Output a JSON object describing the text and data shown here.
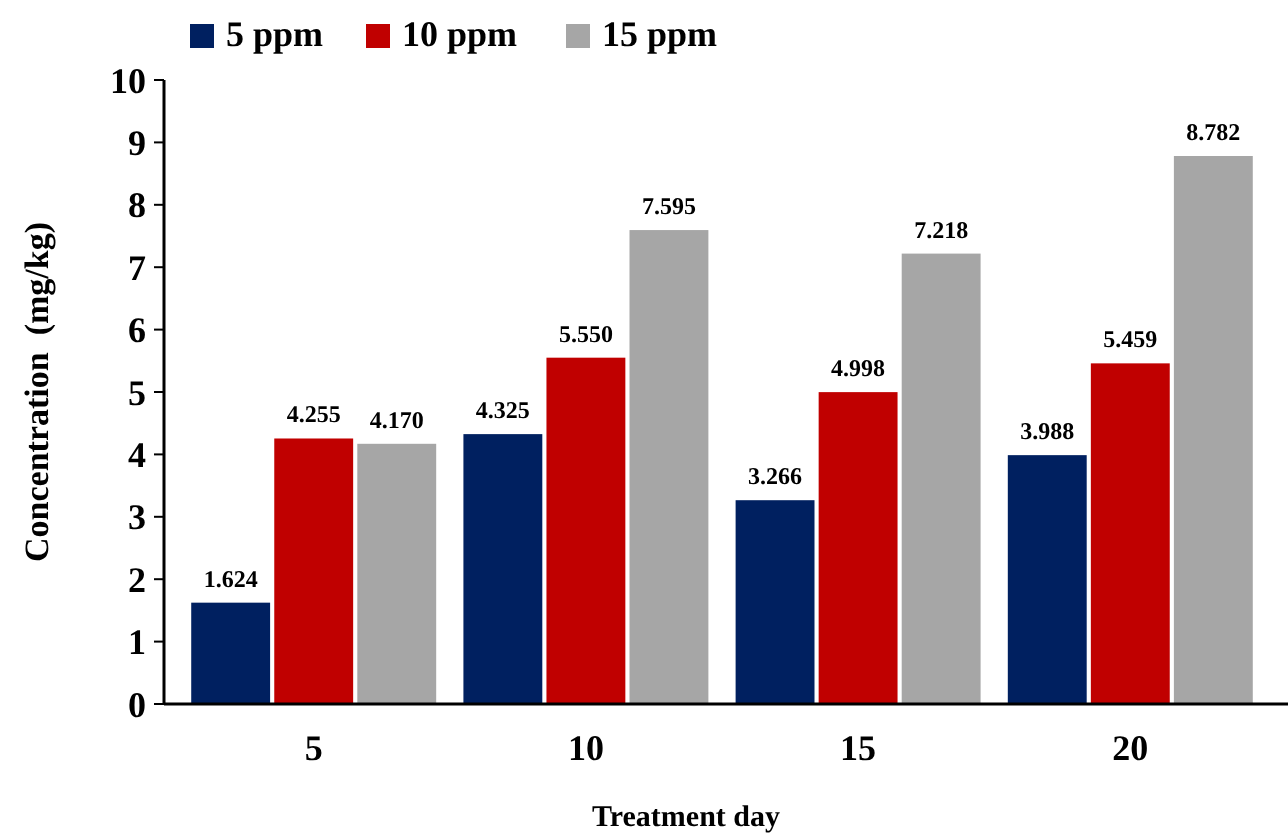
{
  "chart_data": {
    "type": "bar",
    "xlabel": "Treatment day",
    "ylabel": "Concentration  (mg/kg)",
    "categories": [
      "5",
      "10",
      "15",
      "20"
    ],
    "series": [
      {
        "name": "5 ppm",
        "color": "#002060",
        "values": [
          1.624,
          4.325,
          3.266,
          3.988
        ],
        "value_labels": [
          "1.624",
          "4.325",
          "3.266",
          "3.988"
        ]
      },
      {
        "name": "10 ppm",
        "color": "#c00000",
        "values": [
          4.255,
          5.55,
          4.998,
          5.459
        ],
        "value_labels": [
          "4.255",
          "5.550",
          "4.998",
          "5.459"
        ]
      },
      {
        "name": "15 ppm",
        "color": "#a6a6a6",
        "values": [
          4.17,
          7.595,
          7.218,
          8.782
        ],
        "value_labels": [
          "4.170",
          "7.595",
          "7.218",
          "8.782"
        ]
      }
    ],
    "ylim": [
      0,
      10
    ],
    "yticks": [
      0,
      1,
      2,
      3,
      4,
      5,
      6,
      7,
      8,
      9,
      10
    ],
    "grid": false,
    "legend": "top left"
  }
}
